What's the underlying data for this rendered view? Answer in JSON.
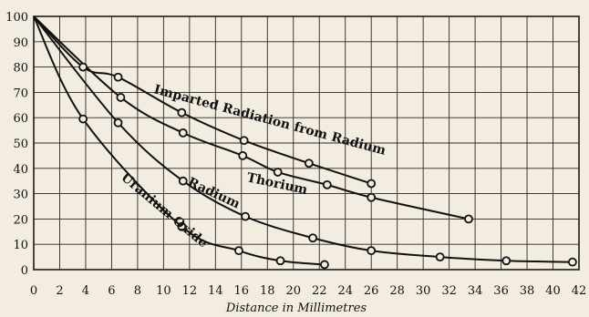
{
  "chart_data": {
    "type": "line",
    "title": "",
    "xlabel": "Distance in Millimetres",
    "ylabel": "",
    "xlim": [
      0,
      42
    ],
    "ylim": [
      0,
      100
    ],
    "x_ticks": [
      0,
      2,
      4,
      6,
      8,
      10,
      12,
      14,
      16,
      18,
      20,
      22,
      24,
      26,
      28,
      30,
      32,
      34,
      36,
      38,
      40,
      42
    ],
    "y_ticks": [
      0,
      10,
      20,
      30,
      40,
      50,
      60,
      70,
      80,
      90,
      100
    ],
    "grid": true,
    "legend": "none",
    "series": [
      {
        "name": "Imparted Radiation from Radium",
        "x": [
          0,
          3.8,
          6.5,
          11.4,
          16.2,
          21.2,
          26
        ],
        "y": [
          100,
          80,
          76,
          62,
          51,
          42,
          34
        ]
      },
      {
        "name": "Thorium",
        "x": [
          0,
          6.7,
          11.5,
          16.1,
          18.8,
          22.6,
          26,
          33.5
        ],
        "y": [
          100,
          68,
          54,
          45,
          38.5,
          33.5,
          28.5,
          20
        ]
      },
      {
        "name": "Radium",
        "x": [
          0,
          6.5,
          11.5,
          16.3,
          21.5,
          26,
          31.3,
          36.4,
          41.5
        ],
        "y": [
          100,
          58,
          35,
          21,
          12.5,
          7.5,
          5,
          3.5,
          3
        ]
      },
      {
        "name": "Uranium Oxide",
        "x": [
          0,
          3.8,
          11.4,
          15.8,
          19,
          22.4
        ],
        "y": [
          100,
          59.5,
          17,
          7.5,
          3.5,
          2
        ]
      }
    ]
  }
}
